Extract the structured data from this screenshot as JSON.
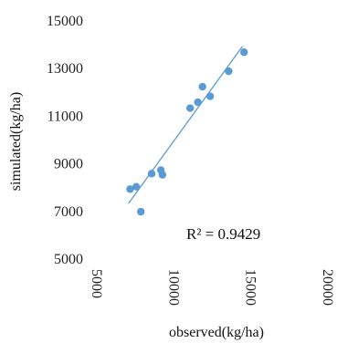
{
  "chart_data": {
    "type": "scatter",
    "xlabel": "observed(kg/ha)",
    "ylabel": "simulated(kg/ha)",
    "xlim": [
      5000,
      20000
    ],
    "ylim": [
      5000,
      15000
    ],
    "x_ticks": [
      "5000",
      "10000",
      "15000",
      "20000"
    ],
    "y_ticks": [
      "15000",
      "13000",
      "11000",
      "9000",
      "7000",
      "5000"
    ],
    "series": [
      {
        "points": [
          {
            "x": 7100,
            "y": 7900
          },
          {
            "x": 7500,
            "y": 8000
          },
          {
            "x": 7800,
            "y": 6950
          },
          {
            "x": 8500,
            "y": 8550
          },
          {
            "x": 9100,
            "y": 8700
          },
          {
            "x": 9200,
            "y": 8500
          },
          {
            "x": 11000,
            "y": 11300
          },
          {
            "x": 11500,
            "y": 11550
          },
          {
            "x": 11800,
            "y": 12200
          },
          {
            "x": 12300,
            "y": 11800
          },
          {
            "x": 13500,
            "y": 12850
          },
          {
            "x": 14500,
            "y": 13650
          }
        ]
      }
    ],
    "trendline": {
      "type": "linear",
      "x_range": [
        7000,
        14400
      ],
      "y_start": 7300,
      "y_end": 13900
    },
    "annotation": "R² = 0.9429",
    "marker_color": "#5b9bd5",
    "line_color": "#5b9bd5",
    "grid": false,
    "legend": "none"
  }
}
